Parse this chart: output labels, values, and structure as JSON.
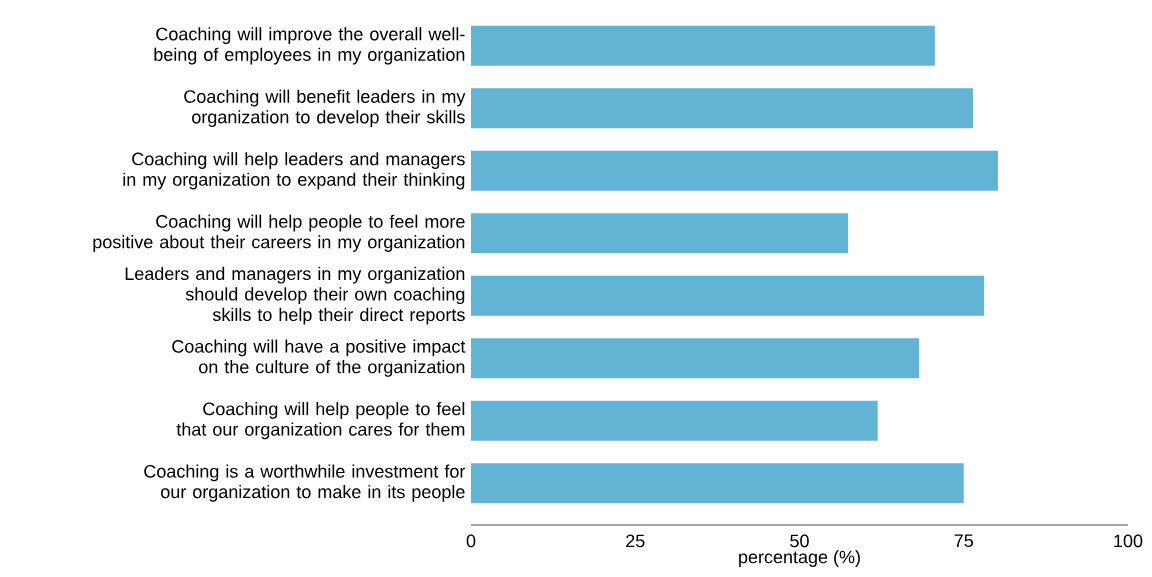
{
  "chart_data": {
    "type": "bar",
    "orientation": "horizontal",
    "xlabel": "percentage (%)",
    "categories": [
      "Coaching will improve the overall well-being of employees in my organization",
      "Coaching will benefit leaders in my organization to develop their skills",
      "Coaching will help leaders and managers in my organization to expand their thinking",
      "Coaching will help people to feel more positive about their careers in my organization",
      "Leaders and managers in my organization should develop their own coaching skills to help their direct reports",
      "Coaching will have a positive impact on the culture of the organization",
      "Coaching will help people to feel that our organization cares for them",
      "Coaching is a worthwhile investment for our organization to make in its people"
    ],
    "values": [
      70.6,
      76.4,
      80.2,
      57.4,
      78.1,
      68.2,
      61.9,
      75.0
    ],
    "color": "#63b3d5",
    "xlim": [
      0,
      100
    ],
    "xticks": [
      0,
      25,
      50,
      75,
      100
    ],
    "grid": false
  }
}
